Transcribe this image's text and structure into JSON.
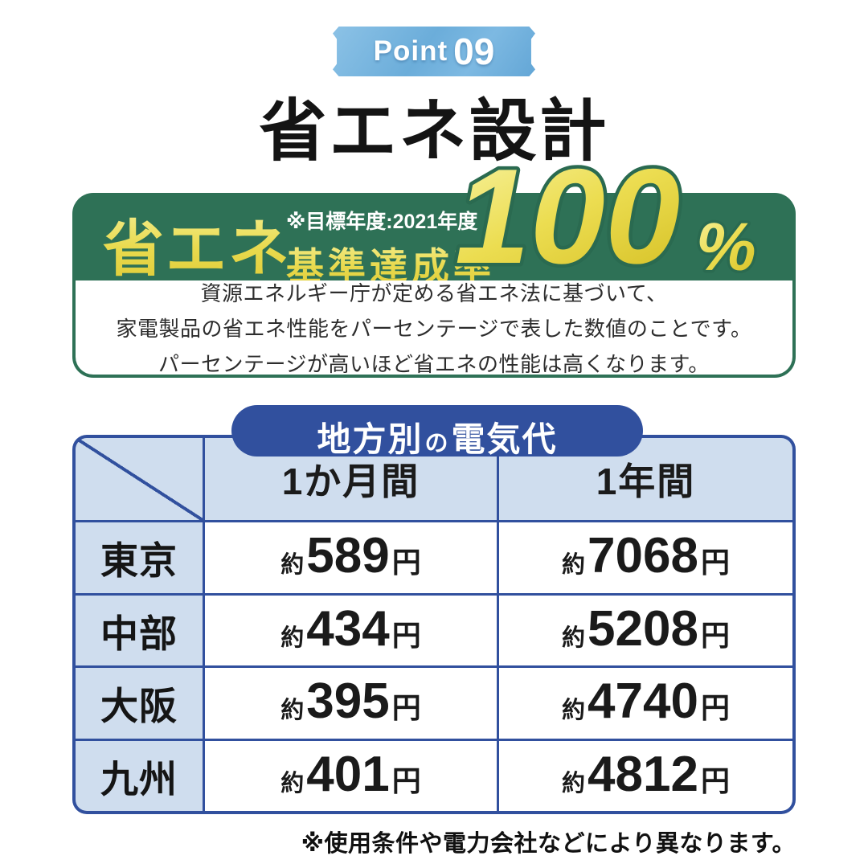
{
  "badge": {
    "word": "Point",
    "number": "09"
  },
  "title": "省エネ設計",
  "banner": {
    "headline": "省エネ",
    "note": "※目標年度:2021年度",
    "subheadline": "基準達成率",
    "value": "100",
    "unit": "%"
  },
  "description": {
    "line1": "資源エネルギー庁が定める省エネ法に基づいて、",
    "line2": "家電製品の省エネ性能をパーセンテージで表した数値のことです。",
    "line3": "パーセンテージが高いほど省エネの性能は高くなります。"
  },
  "table": {
    "title": {
      "part1": "地方別",
      "particle": "の",
      "part2": "電気代"
    },
    "col_month": "1か月間",
    "col_year": "1年間",
    "value_prefix": "約",
    "value_unit": "円",
    "rows": [
      {
        "region": "東京",
        "month": "589",
        "year": "7068"
      },
      {
        "region": "中部",
        "month": "434",
        "year": "5208"
      },
      {
        "region": "大阪",
        "month": "395",
        "year": "4740"
      },
      {
        "region": "九州",
        "month": "401",
        "year": "4812"
      }
    ]
  },
  "footnote": "※使用条件や電力会社などにより異なります。",
  "colors": {
    "badge_blue": "#6badda",
    "banner_green": "#2e7156",
    "accent_yellow": "#e9da4e",
    "table_blue": "#31509e",
    "table_light_blue": "#cfddee"
  }
}
